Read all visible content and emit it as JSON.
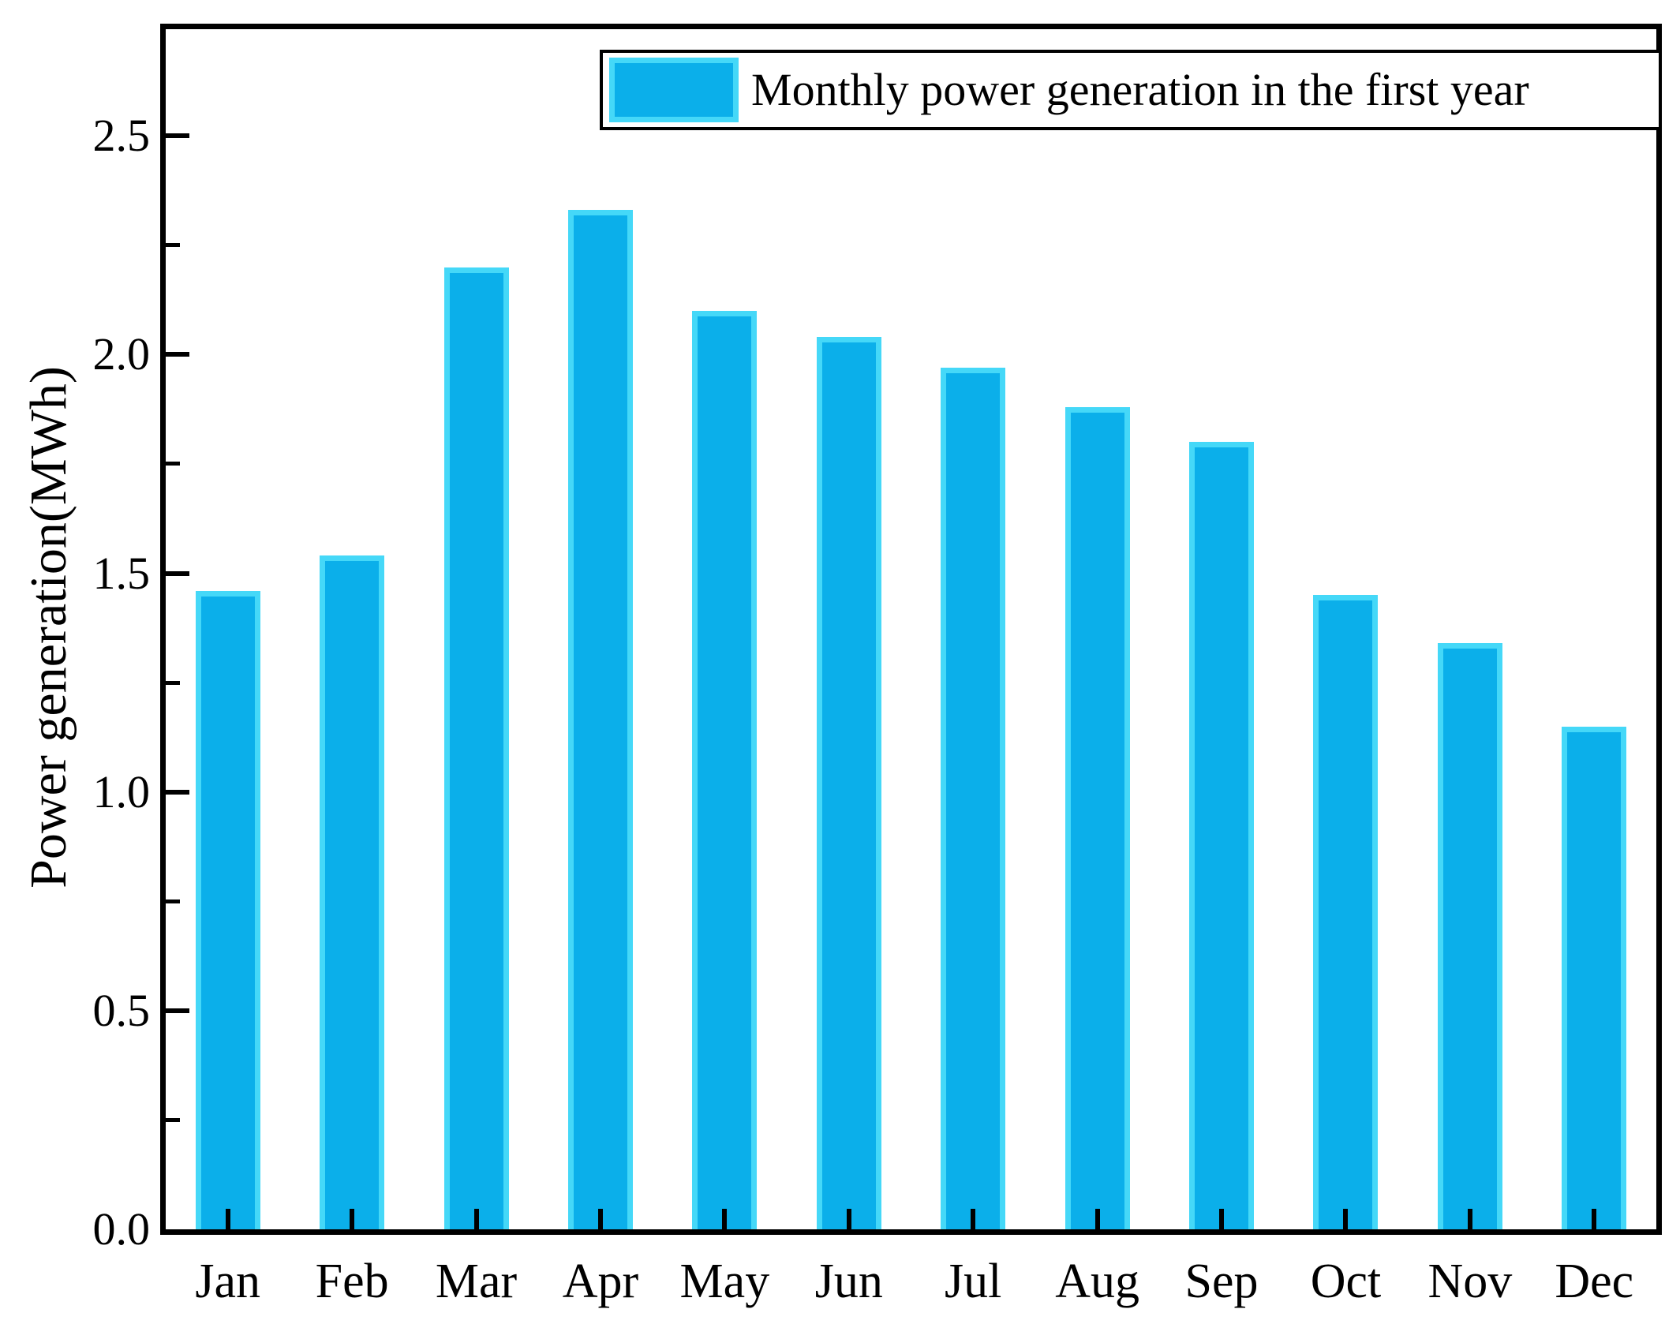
{
  "chart_data": {
    "type": "bar",
    "title": "",
    "xlabel": "",
    "ylabel": "Power generation(MWh)",
    "categories": [
      "Jan",
      "Feb",
      "Mar",
      "Apr",
      "May",
      "Jun",
      "Jul",
      "Aug",
      "Sep",
      "Oct",
      "Nov",
      "Dec"
    ],
    "values": [
      1.46,
      1.54,
      2.2,
      2.33,
      2.1,
      2.04,
      1.97,
      1.88,
      1.8,
      1.45,
      1.34,
      1.15
    ],
    "ylim": [
      0,
      2.744
    ],
    "ytick_values": [
      0,
      0.5,
      1,
      1.5,
      2,
      2.5
    ],
    "ytick_labels": [
      "0.0",
      "0.5",
      "1.0",
      "1.5",
      "2.0",
      "2.5"
    ],
    "ytick_minor_values": [
      0.25,
      0.75,
      1.25,
      1.75,
      2.25
    ],
    "grid": false,
    "legend": {
      "label": "Monthly power generation in the first year",
      "position": "top-right"
    },
    "colors": {
      "bar_fill": "#0BAFEA",
      "bar_edge": "#45D8F8",
      "axis": "#000000",
      "text": "#000000",
      "background": "#FFFFFF"
    }
  }
}
